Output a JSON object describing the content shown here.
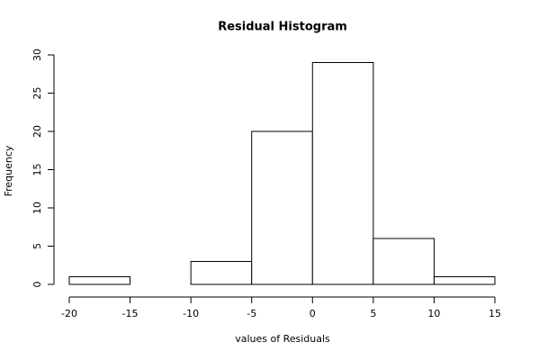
{
  "chart_data": {
    "type": "histogram",
    "title": "Residual Histogram",
    "x_label": "values of Residuals",
    "y_label": "Frequency",
    "bins": [
      -20,
      -15,
      -10,
      -5,
      0,
      5,
      10,
      15
    ],
    "values": [
      1,
      0,
      3,
      20,
      29,
      6,
      1
    ],
    "color": "#ffffff",
    "xlim": [
      -20,
      15
    ],
    "xticks": [
      -20,
      -15,
      -10,
      -5,
      0,
      5,
      10,
      15
    ],
    "ylim": [
      0,
      30
    ],
    "yticks": [
      0,
      5,
      10,
      15,
      20,
      25,
      30
    ],
    "grid": false
  }
}
